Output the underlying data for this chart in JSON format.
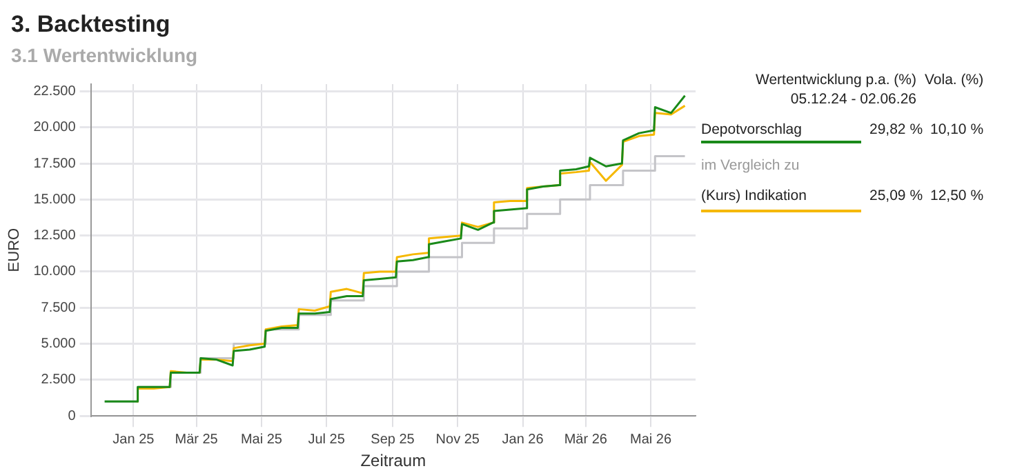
{
  "chart_data": {
    "type": "line",
    "title": "3. Backtesting",
    "subtitle": "3.1 Wertentwicklung",
    "xlabel": "Zeitraum",
    "ylabel": "EURO",
    "x": [
      "2024-12-05",
      "2024-12-20",
      "2025-01-04",
      "2025-01-05",
      "2025-01-20",
      "2025-02-04",
      "2025-02-05",
      "2025-02-20",
      "2025-03-04",
      "2025-03-05",
      "2025-03-20",
      "2025-04-04",
      "2025-04-05",
      "2025-04-20",
      "2025-05-04",
      "2025-05-05",
      "2025-05-20",
      "2025-06-04",
      "2025-06-05",
      "2025-06-20",
      "2025-07-04",
      "2025-07-05",
      "2025-07-20",
      "2025-08-04",
      "2025-08-05",
      "2025-08-20",
      "2025-09-04",
      "2025-09-05",
      "2025-09-20",
      "2025-10-04",
      "2025-10-05",
      "2025-10-20",
      "2025-11-04",
      "2025-11-05",
      "2025-11-20",
      "2025-12-04",
      "2025-12-05",
      "2025-12-20",
      "2026-01-04",
      "2026-01-05",
      "2026-01-20",
      "2026-02-04",
      "2026-02-05",
      "2026-02-20",
      "2026-03-04",
      "2026-03-05",
      "2026-03-20",
      "2026-04-04",
      "2026-04-05",
      "2026-04-20",
      "2026-05-04",
      "2026-05-05",
      "2026-05-20",
      "2026-06-02"
    ],
    "series": [
      {
        "name": "Depotvorschlag",
        "color": "#1a8a1a",
        "values": [
          1000,
          1000,
          1000,
          2000,
          2000,
          2000,
          3000,
          3000,
          3000,
          4000,
          3900,
          3500,
          4500,
          4600,
          4800,
          5900,
          6100,
          6100,
          7100,
          7100,
          7200,
          8100,
          8300,
          8300,
          9400,
          9500,
          9600,
          10700,
          10800,
          11000,
          11900,
          12100,
          12300,
          13300,
          12900,
          13400,
          14200,
          14300,
          14400,
          15700,
          15900,
          16000,
          17000,
          17100,
          17300,
          17900,
          17300,
          17500,
          19100,
          19600,
          19800,
          21400,
          21000,
          22200
        ]
      },
      {
        "name": "(Kurs) Indikation",
        "color": "#f5b800",
        "values": [
          null,
          null,
          1000,
          1900,
          1900,
          2000,
          3100,
          3000,
          3000,
          3900,
          3900,
          3800,
          4700,
          4900,
          5000,
          6000,
          6200,
          6300,
          7400,
          7300,
          7600,
          8600,
          8800,
          8500,
          9900,
          10000,
          10000,
          11000,
          11200,
          11300,
          12300,
          12400,
          12500,
          13400,
          13100,
          13400,
          14800,
          14900,
          14900,
          15800,
          15900,
          16000,
          16800,
          16900,
          17000,
          17600,
          16300,
          17400,
          19000,
          19400,
          19500,
          21000,
          20900,
          21500
        ]
      },
      {
        "type": "step",
        "color": "#c4c4c8",
        "x": [
          "2024-12-05",
          "2025-01-05",
          "2025-02-05",
          "2025-03-05",
          "2025-04-05",
          "2025-05-05",
          "2025-06-05",
          "2025-07-05",
          "2025-08-05",
          "2025-09-05",
          "2025-10-05",
          "2025-11-05",
          "2025-12-05",
          "2026-01-05",
          "2026-02-05",
          "2026-03-05",
          "2026-04-05",
          "2026-05-05",
          "2026-06-02"
        ],
        "values": [
          1000,
          2000,
          3000,
          4000,
          5000,
          6000,
          7000,
          8000,
          9000,
          10000,
          11000,
          12000,
          13000,
          14000,
          15000,
          16000,
          17000,
          18000,
          18000
        ]
      }
    ],
    "xlim": [
      "2024-11-22",
      "2026-06-12"
    ],
    "xticks": [
      {
        "value": "2025-01-01",
        "label": "Jan 25"
      },
      {
        "value": "2025-03-01",
        "label": "Mär 25"
      },
      {
        "value": "2025-05-01",
        "label": "Mai 25"
      },
      {
        "value": "2025-07-01",
        "label": "Jul 25"
      },
      {
        "value": "2025-09-01",
        "label": "Sep 25"
      },
      {
        "value": "2025-11-01",
        "label": "Nov 25"
      },
      {
        "value": "2026-01-01",
        "label": "Jan 26"
      },
      {
        "value": "2026-03-01",
        "label": "Mär 26"
      },
      {
        "value": "2026-05-01",
        "label": "Mai 26"
      }
    ],
    "ylim": [
      0,
      23000
    ],
    "yticks": [
      0,
      {
        "value": 2500,
        "label": "2.500"
      },
      {
        "value": 5000,
        "label": "5.000"
      },
      {
        "value": 7500,
        "label": "7.500"
      },
      {
        "value": 10000,
        "label": "10.000"
      },
      {
        "value": 12500,
        "label": "12.500"
      },
      {
        "value": 15000,
        "label": "15.000"
      },
      {
        "value": 17500,
        "label": "17.500"
      },
      {
        "value": 20000,
        "label": "20.000"
      },
      {
        "value": 22500,
        "label": "22.500"
      }
    ],
    "grid": true,
    "legend": "right",
    "marker": "none",
    "line_style": "solid",
    "annotations": [
      "Wertentwicklung p.a. (%)",
      "Vola. (%)",
      "05.12.24 - 02.06.26",
      "29,82 %",
      "10,10 %",
      "im Vergleich zu",
      "25,09 %",
      "12,50 %"
    ]
  }
}
